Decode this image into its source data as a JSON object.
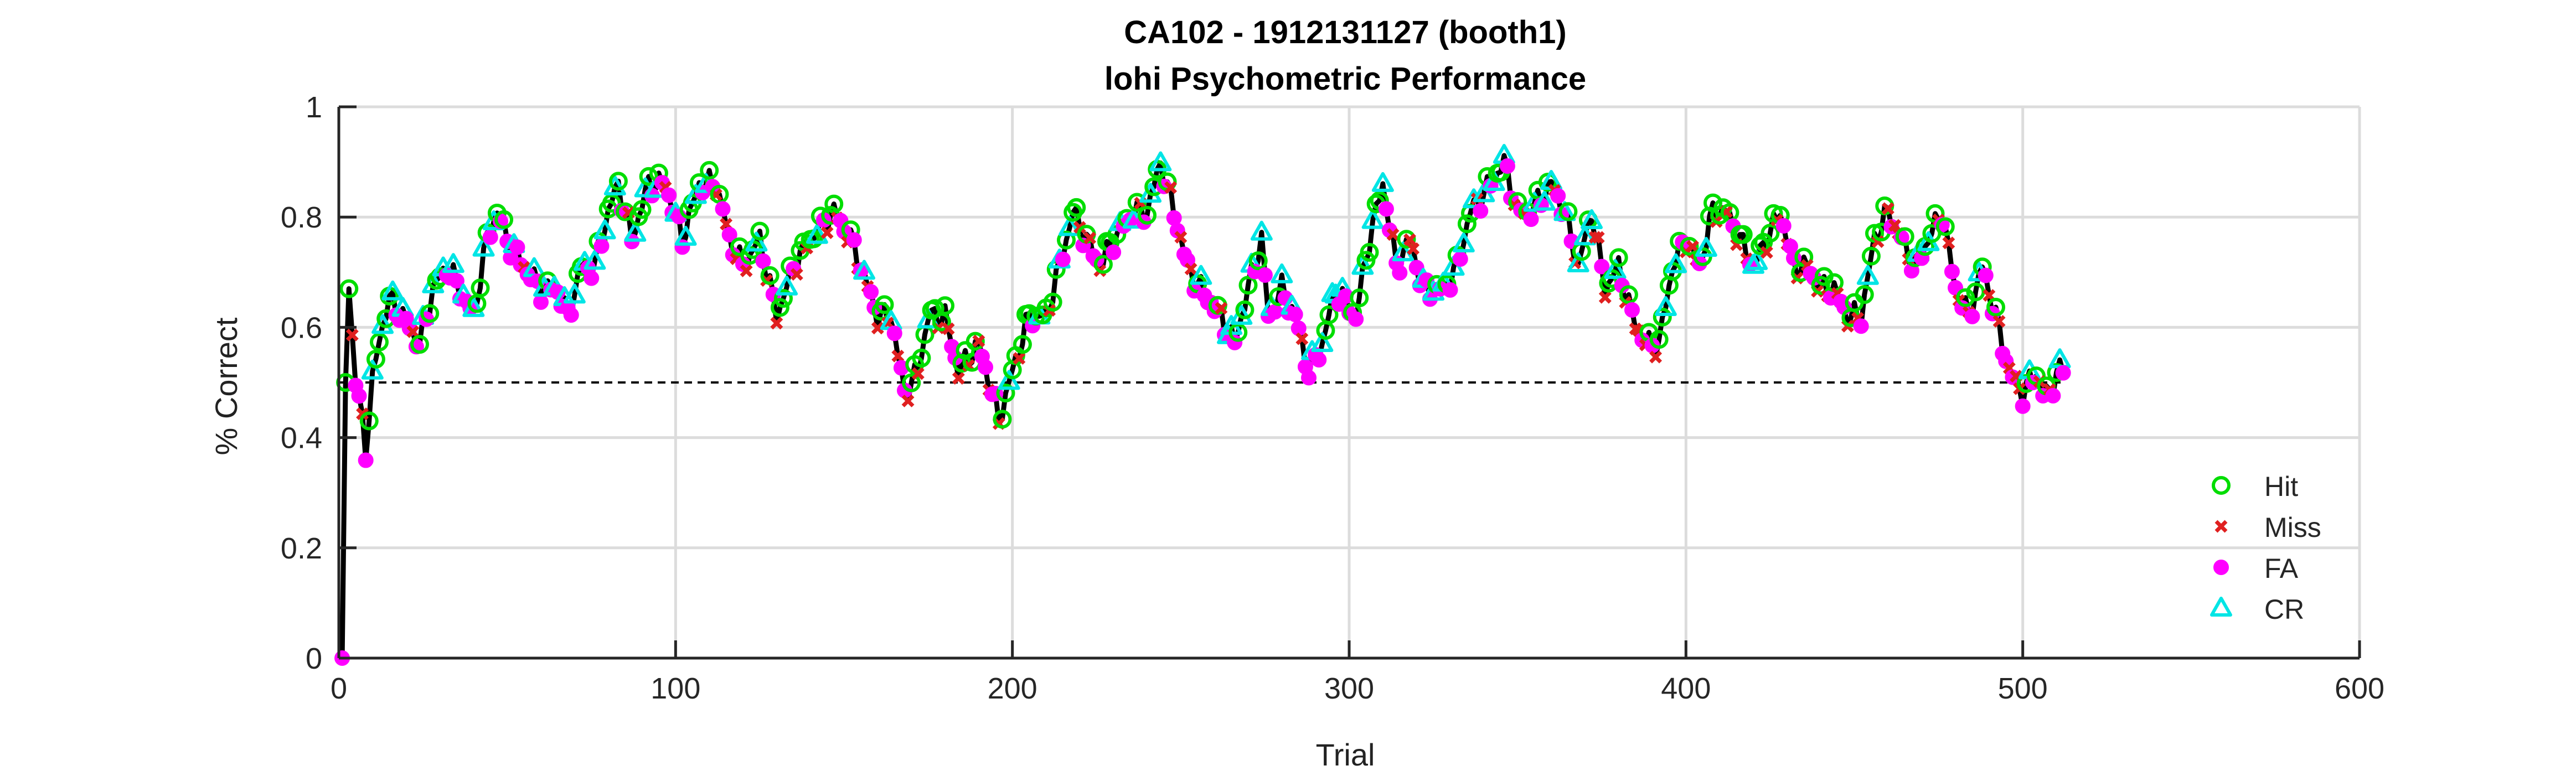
{
  "chart_data": {
    "type": "line",
    "title_lines": [
      "CA102 - 1912131127 (booth1)",
      "lohi Psychometric Performance"
    ],
    "xlabel": "Trial",
    "ylabel": "% Correct",
    "xlim": [
      0,
      600
    ],
    "ylim": [
      0,
      1
    ],
    "xticks": [
      0,
      100,
      200,
      300,
      400,
      500,
      600
    ],
    "yticks": [
      0,
      0.2,
      0.4,
      0.6,
      0.8,
      1
    ],
    "xtick_labels": [
      "0",
      "100",
      "200",
      "300",
      "400",
      "500",
      "600"
    ],
    "ytick_labels": [
      "0",
      "0.2",
      "0.4",
      "0.6",
      "0.8",
      "1"
    ],
    "grid": true,
    "legend_position": "right",
    "reference_line": {
      "y": 0.5,
      "x_range": [
        0,
        512
      ],
      "style": "dashed"
    },
    "series": [
      {
        "name": "Hit",
        "marker": "circle-open",
        "color": "#00dd00"
      },
      {
        "name": "Miss",
        "marker": "x",
        "color": "#e02020"
      },
      {
        "name": "FA",
        "marker": "circle-filled",
        "color": "#ff00ff"
      },
      {
        "name": "CR",
        "marker": "triangle-open",
        "color": "#00e5e5"
      }
    ],
    "anchor_points": [
      [
        1,
        0
      ],
      [
        2,
        0.5
      ],
      [
        3,
        0.67
      ],
      [
        5,
        0.5
      ],
      [
        7,
        0.43
      ],
      [
        8,
        0.38
      ],
      [
        10,
        0.5
      ],
      [
        12,
        0.58
      ],
      [
        15,
        0.65
      ],
      [
        18,
        0.63
      ],
      [
        21,
        0.6
      ],
      [
        24,
        0.57
      ],
      [
        28,
        0.67
      ],
      [
        32,
        0.71
      ],
      [
        36,
        0.67
      ],
      [
        40,
        0.62
      ],
      [
        44,
        0.76
      ],
      [
        47,
        0.81
      ],
      [
        50,
        0.76
      ],
      [
        55,
        0.71
      ],
      [
        60,
        0.67
      ],
      [
        65,
        0.67
      ],
      [
        68,
        0.62
      ],
      [
        72,
        0.71
      ],
      [
        76,
        0.71
      ],
      [
        80,
        0.81
      ],
      [
        83,
        0.86
      ],
      [
        87,
        0.76
      ],
      [
        92,
        0.86
      ],
      [
        97,
        0.86
      ],
      [
        102,
        0.76
      ],
      [
        107,
        0.86
      ],
      [
        112,
        0.86
      ],
      [
        116,
        0.76
      ],
      [
        120,
        0.71
      ],
      [
        125,
        0.76
      ],
      [
        130,
        0.62
      ],
      [
        135,
        0.71
      ],
      [
        140,
        0.76
      ],
      [
        147,
        0.81
      ],
      [
        152,
        0.76
      ],
      [
        155,
        0.71
      ],
      [
        160,
        0.62
      ],
      [
        164,
        0.62
      ],
      [
        168,
        0.48
      ],
      [
        172,
        0.52
      ],
      [
        175,
        0.62
      ],
      [
        180,
        0.62
      ],
      [
        184,
        0.52
      ],
      [
        190,
        0.57
      ],
      [
        194,
        0.48
      ],
      [
        196,
        0.43
      ],
      [
        200,
        0.52
      ],
      [
        205,
        0.62
      ],
      [
        210,
        0.62
      ],
      [
        214,
        0.71
      ],
      [
        218,
        0.81
      ],
      [
        222,
        0.76
      ],
      [
        226,
        0.71
      ],
      [
        230,
        0.76
      ],
      [
        236,
        0.81
      ],
      [
        240,
        0.81
      ],
      [
        244,
        0.9
      ],
      [
        248,
        0.81
      ],
      [
        252,
        0.71
      ],
      [
        256,
        0.67
      ],
      [
        262,
        0.62
      ],
      [
        266,
        0.57
      ],
      [
        270,
        0.67
      ],
      [
        274,
        0.76
      ],
      [
        276,
        0.62
      ],
      [
        280,
        0.67
      ],
      [
        284,
        0.62
      ],
      [
        288,
        0.52
      ],
      [
        292,
        0.57
      ],
      [
        296,
        0.67
      ],
      [
        302,
        0.62
      ],
      [
        306,
        0.76
      ],
      [
        310,
        0.86
      ],
      [
        314,
        0.71
      ],
      [
        318,
        0.76
      ],
      [
        322,
        0.67
      ],
      [
        328,
        0.67
      ],
      [
        332,
        0.71
      ],
      [
        336,
        0.81
      ],
      [
        342,
        0.86
      ],
      [
        346,
        0.9
      ],
      [
        350,
        0.81
      ],
      [
        354,
        0.81
      ],
      [
        360,
        0.86
      ],
      [
        364,
        0.81
      ],
      [
        368,
        0.71
      ],
      [
        372,
        0.81
      ],
      [
        376,
        0.67
      ],
      [
        380,
        0.71
      ],
      [
        384,
        0.62
      ],
      [
        388,
        0.57
      ],
      [
        392,
        0.57
      ],
      [
        396,
        0.71
      ],
      [
        400,
        0.76
      ],
      [
        404,
        0.71
      ],
      [
        408,
        0.81
      ],
      [
        412,
        0.81
      ],
      [
        416,
        0.76
      ],
      [
        420,
        0.71
      ],
      [
        424,
        0.76
      ],
      [
        428,
        0.81
      ],
      [
        432,
        0.71
      ],
      [
        436,
        0.71
      ],
      [
        440,
        0.67
      ],
      [
        444,
        0.67
      ],
      [
        448,
        0.62
      ],
      [
        452,
        0.62
      ],
      [
        456,
        0.76
      ],
      [
        460,
        0.81
      ],
      [
        464,
        0.76
      ],
      [
        468,
        0.71
      ],
      [
        472,
        0.76
      ],
      [
        476,
        0.81
      ],
      [
        480,
        0.67
      ],
      [
        484,
        0.62
      ],
      [
        488,
        0.71
      ],
      [
        492,
        0.62
      ],
      [
        496,
        0.52
      ],
      [
        500,
        0.48
      ],
      [
        504,
        0.52
      ],
      [
        506,
        0.48
      ],
      [
        508,
        0.48
      ],
      [
        510,
        0.52
      ],
      [
        512,
        0.52
      ]
    ]
  }
}
